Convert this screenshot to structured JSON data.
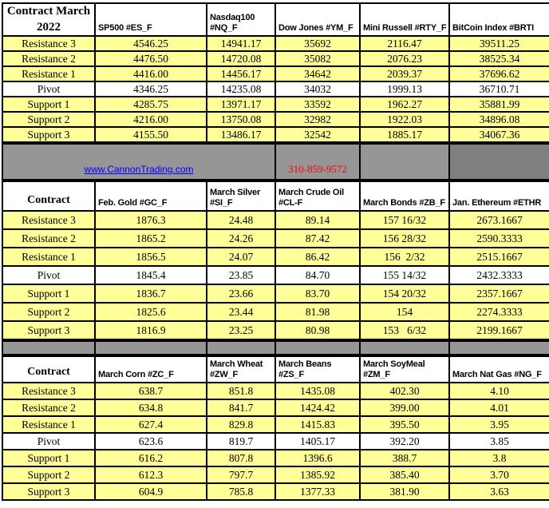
{
  "colors": {
    "row_yellow": "#FFFF99",
    "pivot_white": "#FFFFFF",
    "band_gray": "#969696",
    "band_dark_gray": "#7F7F7F",
    "border_black": "#000000",
    "link_blue": "#0000FF",
    "phone_red": "#FF0000"
  },
  "banner": {
    "link_text": "www.CannonTrading.com",
    "phone": "310-859-9572"
  },
  "tables": [
    {
      "corner_label": "Contract March\n2022",
      "columns": [
        "SP500 #ES_F",
        "Nasdaq100 #NQ_F",
        "Dow Jones #YM_F",
        "Mini Russell #RTY_F",
        "BitCoin Index #BRTI"
      ],
      "rows": [
        {
          "label": "Resistance 3",
          "values": [
            "4546.25",
            "14941.17",
            "35692",
            "2116.47",
            "39511.25"
          ]
        },
        {
          "label": "Resistance 2",
          "values": [
            "4476.50",
            "14720.08",
            "35082",
            "2076.23",
            "38525.34"
          ]
        },
        {
          "label": "Resistance 1",
          "values": [
            "4416.00",
            "14456.17",
            "34642",
            "2039.37",
            "37696.62"
          ]
        },
        {
          "label": "Pivot",
          "values": [
            "4346.25",
            "14235.08",
            "34032",
            "1999.13",
            "36710.71"
          ]
        },
        {
          "label": "Support 1",
          "values": [
            "4285.75",
            "13971.17",
            "33592",
            "1962.27",
            "35881.99"
          ]
        },
        {
          "label": "Support 2",
          "values": [
            "4216.00",
            "13750.08",
            "32982",
            "1922.03",
            "34896.08"
          ]
        },
        {
          "label": "Support 3",
          "values": [
            "4155.50",
            "13486.17",
            "32542",
            "1885.17",
            "34067.36"
          ]
        }
      ]
    },
    {
      "corner_label": "Contract",
      "columns": [
        "Feb. Gold #GC_F",
        "March Silver #SI_F",
        "March Crude Oil #CL-F",
        "March Bonds #ZB_F",
        "Jan.  Ethereum #ETHR"
      ],
      "rows": [
        {
          "label": "Resistance 3",
          "values": [
            "1876.3",
            "24.48",
            "89.14",
            "157 16/32",
            "2673.1667"
          ]
        },
        {
          "label": "Resistance 2",
          "values": [
            "1865.2",
            "24.26",
            "87.42",
            "156 28/32",
            "2590.3333"
          ]
        },
        {
          "label": "Resistance 1",
          "values": [
            "1856.5",
            "24.07",
            "86.42",
            "156  2/32",
            "2515.1667"
          ]
        },
        {
          "label": "Pivot",
          "values": [
            "1845.4",
            "23.85",
            "84.70",
            "155 14/32",
            "2432.3333"
          ]
        },
        {
          "label": "Support 1",
          "values": [
            "1836.7",
            "23.66",
            "83.70",
            "154 20/32",
            "2357.1667"
          ]
        },
        {
          "label": "Support 2",
          "values": [
            "1825.6",
            "23.44",
            "81.98",
            "154",
            "2274.3333"
          ]
        },
        {
          "label": "Support 3",
          "values": [
            "1816.9",
            "23.25",
            "80.98",
            "153   6/32",
            "2199.1667"
          ]
        }
      ]
    },
    {
      "corner_label": "Contract",
      "columns": [
        "March Corn #ZC_F",
        "March  Wheat #ZW_F",
        "March Beans #ZS_F",
        "March SoyMeal #ZM_F",
        "March Nat Gas #NG_F"
      ],
      "rows": [
        {
          "label": "Resistance 3",
          "values": [
            "638.7",
            "851.8",
            "1435.08",
            "402.30",
            "4.10"
          ]
        },
        {
          "label": "Resistance 2",
          "values": [
            "634.8",
            "841.7",
            "1424.42",
            "399.00",
            "4.01"
          ]
        },
        {
          "label": "Resistance 1",
          "values": [
            "627.4",
            "829.8",
            "1415.83",
            "395.50",
            "3.95"
          ]
        },
        {
          "label": "Pivot",
          "values": [
            "623.6",
            "819.7",
            "1405.17",
            "392.20",
            "3.85"
          ]
        },
        {
          "label": "Support 1",
          "values": [
            "616.2",
            "807.8",
            "1396.6",
            "388.7",
            "3.8"
          ]
        },
        {
          "label": "Support 2",
          "values": [
            "612.3",
            "797.7",
            "1385.92",
            "385.40",
            "3.70"
          ]
        },
        {
          "label": "Support 3",
          "values": [
            "604.9",
            "785.8",
            "1377.33",
            "381.90",
            "3.63"
          ]
        }
      ]
    }
  ]
}
